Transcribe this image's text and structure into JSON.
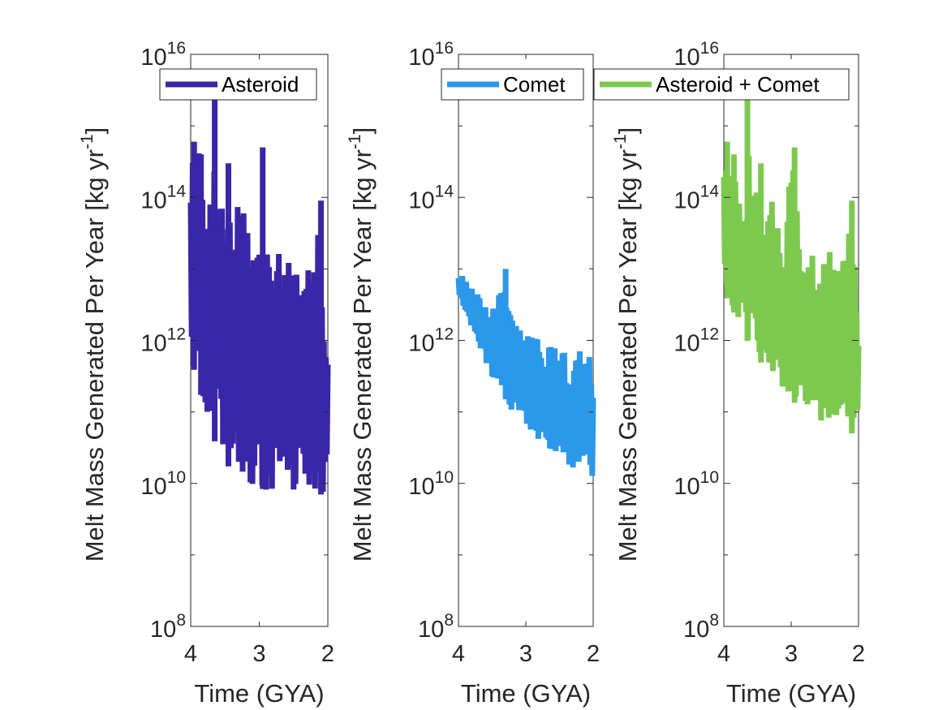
{
  "chart_data": [
    {
      "type": "line",
      "series": [
        {
          "name": "Asteroid",
          "color": "#3a27a8"
        }
      ],
      "xlabel": "Time (GYA)",
      "ylabel": "Melt Mass Generated Per Year [kg yr⁻¹]",
      "ylabel_parts": {
        "main": "Melt Mass Generated Per Year [kg yr",
        "sup": "-1",
        "end": "]"
      },
      "xlim": [
        4,
        2
      ],
      "ylim": [
        100000000.0,
        1e+16
      ],
      "yscale": "log",
      "xticks": [
        "4",
        "3",
        "2"
      ],
      "yticks": [
        {
          "base": "10",
          "exp": "8"
        },
        {
          "base": "10",
          "exp": "10"
        },
        {
          "base": "10",
          "exp": "12"
        },
        {
          "base": "10",
          "exp": "14"
        },
        {
          "base": "10",
          "exp": "16"
        }
      ],
      "legend": "top-right",
      "envelope": {
        "x": [
          4.0,
          3.9,
          3.8,
          3.7,
          3.6,
          3.5,
          3.4,
          3.3,
          3.2,
          3.1,
          3.0,
          2.9,
          2.8,
          2.7,
          2.6,
          2.5,
          2.4,
          2.3,
          2.2,
          2.1,
          2.0
        ],
        "upper": [
          500000000000000.0,
          600000000000000.0,
          200000000000000.0,
          100000000000000.0,
          1000000000000000.0,
          200000000000000.0,
          30000000000000.0,
          100000000000000.0,
          50000000000000.0,
          20000000000000.0,
          500000000000000.0,
          50000000000000.0,
          20000000000000.0,
          30000000000000.0,
          10000000000000.0,
          30000000000000.0,
          20000000000000.0,
          10000000000000.0,
          20000000000000.0,
          80000000000000.0,
          1000000000000.0
        ],
        "lower": [
          500000000000.0,
          300000000000.0,
          100000000000.0,
          50000000000.0,
          30000000000.0,
          20000000000.0,
          15000000000.0,
          12000000000.0,
          10000000000.0,
          8000000000.0,
          10000000000.0,
          7000000000.0,
          8000000000.0,
          9000000000.0,
          7000000000.0,
          8000000000.0,
          9000000000.0,
          7000000000.0,
          8000000000.0,
          7000000000.0,
          9000000000.0
        ]
      },
      "spikes": [
        [
          3.95,
          600000000000000.0
        ],
        [
          3.85,
          400000000000000.0
        ],
        [
          3.65,
          3000000000000000.0
        ],
        [
          3.45,
          300000000000000.0
        ],
        [
          2.95,
          500000000000000.0
        ],
        [
          2.1,
          90000000000000.0
        ]
      ]
    },
    {
      "type": "line",
      "series": [
        {
          "name": "Comet",
          "color": "#2b98ea"
        }
      ],
      "xlabel": "Time (GYA)",
      "ylabel": "Melt Mass Generated Per Year [kg yr⁻¹]",
      "ylabel_parts": {
        "main": "Melt Mass Generated Per Year [kg yr",
        "sup": "-1",
        "end": "]"
      },
      "xlim": [
        4,
        2
      ],
      "ylim": [
        100000000.0,
        1e+16
      ],
      "yscale": "log",
      "xticks": [
        "4",
        "3",
        "2"
      ],
      "yticks": [
        {
          "base": "10",
          "exp": "8"
        },
        {
          "base": "10",
          "exp": "10"
        },
        {
          "base": "10",
          "exp": "12"
        },
        {
          "base": "10",
          "exp": "14"
        },
        {
          "base": "10",
          "exp": "16"
        }
      ],
      "legend": "top-right",
      "envelope": {
        "x": [
          4.0,
          3.9,
          3.8,
          3.7,
          3.6,
          3.5,
          3.4,
          3.3,
          3.2,
          3.1,
          3.0,
          2.9,
          2.8,
          2.7,
          2.6,
          2.5,
          2.4,
          2.3,
          2.2,
          2.1,
          2.0
        ],
        "upper": [
          9000000000000.0,
          9000000000000.0,
          6000000000000.0,
          5000000000000.0,
          4000000000000.0,
          3000000000000.0,
          6000000000000.0,
          10000000000000.0,
          2000000000000.0,
          1500000000000.0,
          1000000000000.0,
          2000000000000.0,
          1000000000000.0,
          800000000000.0,
          1000000000000.0,
          600000000000.0,
          800000000000.0,
          500000000000.0,
          1500000000000.0,
          1000000000000.0,
          500000000000.0
        ],
        "lower": [
          4000000000000.0,
          2500000000000.0,
          1500000000000.0,
          800000000000.0,
          500000000000.0,
          300000000000.0,
          200000000000.0,
          150000000000.0,
          100000000000.0,
          80000000000.0,
          60000000000.0,
          50000000000.0,
          40000000000.0,
          30000000000.0,
          25000000000.0,
          20000000000.0,
          20000000000.0,
          15000000000.0,
          20000000000.0,
          15000000000.0,
          10000000000.0
        ]
      },
      "spikes": [
        [
          3.3,
          10000000000000.0
        ]
      ]
    },
    {
      "type": "line",
      "series": [
        {
          "name": "Asteroid + Comet",
          "color": "#7dc94f"
        }
      ],
      "xlabel": "Time (GYA)",
      "ylabel": "Melt Mass Generated Per Year [kg yr⁻¹]",
      "ylabel_parts": {
        "main": "Melt Mass Generated Per Year [kg yr",
        "sup": "-1",
        "end": "]"
      },
      "xlim": [
        4,
        2
      ],
      "ylim": [
        100000000.0,
        1e+16
      ],
      "yscale": "log",
      "xticks": [
        "4",
        "3",
        "2"
      ],
      "yticks": [
        {
          "base": "10",
          "exp": "8"
        },
        {
          "base": "10",
          "exp": "10"
        },
        {
          "base": "10",
          "exp": "12"
        },
        {
          "base": "10",
          "exp": "14"
        },
        {
          "base": "10",
          "exp": "16"
        }
      ],
      "legend": "top-right",
      "envelope": {
        "x": [
          4.0,
          3.9,
          3.8,
          3.7,
          3.6,
          3.5,
          3.4,
          3.3,
          3.2,
          3.1,
          3.0,
          2.9,
          2.8,
          2.7,
          2.6,
          2.5,
          2.4,
          2.3,
          2.2,
          2.1,
          2.0
        ],
        "upper": [
          500000000000000.0,
          600000000000000.0,
          200000000000000.0,
          100000000000000.0,
          1000000000000000.0,
          200000000000000.0,
          30000000000000.0,
          100000000000000.0,
          50000000000000.0,
          20000000000000.0,
          500000000000000.0,
          50000000000000.0,
          20000000000000.0,
          30000000000000.0,
          10000000000000.0,
          30000000000000.0,
          20000000000000.0,
          10000000000000.0,
          20000000000000.0,
          80000000000000.0,
          1000000000000.0
        ],
        "lower": [
          5000000000000.0,
          3000000000000.0,
          2000000000000.0,
          1200000000000.0,
          800000000000.0,
          600000000000.0,
          400000000000.0,
          300000000000.0,
          250000000000.0,
          200000000000.0,
          150000000000.0,
          120000000000.0,
          100000000000.0,
          80000000000.0,
          70000000000.0,
          60000000000.0,
          50000000000.0,
          50000000000.0,
          60000000000.0,
          50000000000.0,
          60000000000.0
        ]
      },
      "spikes": [
        [
          3.95,
          600000000000000.0
        ],
        [
          3.85,
          400000000000000.0
        ],
        [
          3.65,
          3000000000000000.0
        ],
        [
          3.45,
          300000000000000.0
        ],
        [
          2.95,
          500000000000000.0
        ],
        [
          2.1,
          90000000000000.0
        ]
      ]
    }
  ]
}
